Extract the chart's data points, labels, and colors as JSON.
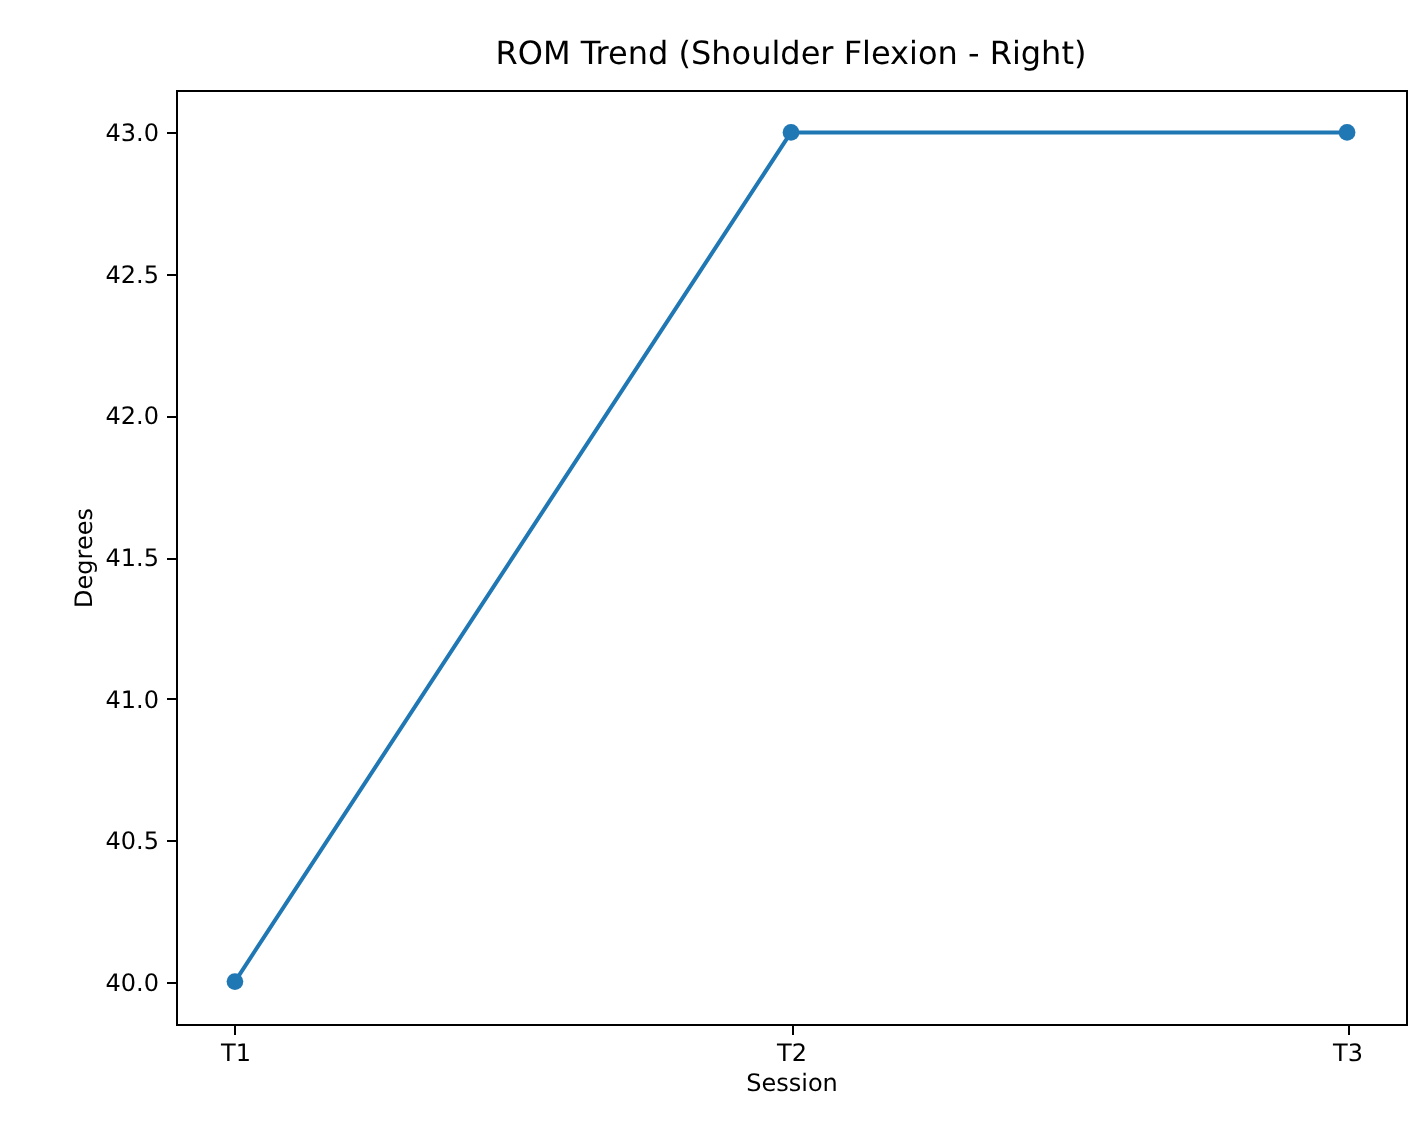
{
  "chart_data": {
    "type": "line",
    "title": "ROM Trend (Shoulder Flexion - Right)",
    "xlabel": "Session",
    "ylabel": "Degrees",
    "categories": [
      "T1",
      "T2",
      "T3"
    ],
    "series": [
      {
        "color": "#1f77b4",
        "values": [
          40.0,
          43.0,
          43.0
        ]
      }
    ],
    "ylim": [
      39.85,
      43.15
    ],
    "yticks": [
      {
        "value": 40,
        "label": "40.0"
      },
      {
        "value": 40.5,
        "label": "40.5"
      },
      {
        "value": 41,
        "label": "41.0"
      },
      {
        "value": 41.5,
        "label": "41.5"
      },
      {
        "value": 42,
        "label": "42.0"
      },
      {
        "value": 42.5,
        "label": "42.5"
      },
      {
        "value": 43,
        "label": "43.0"
      }
    ],
    "grid": false,
    "marker": "circle",
    "line_style": "solid"
  }
}
